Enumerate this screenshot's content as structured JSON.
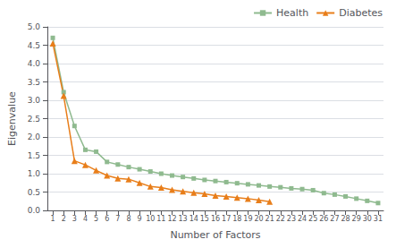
{
  "chart_data": {
    "type": "line",
    "xlabel": "Number of Factors",
    "ylabel": "Eigenvalue",
    "series": [
      {
        "name": "Health",
        "color": "#8fba8f",
        "marker": "square",
        "x": [
          1,
          2,
          3,
          4,
          5,
          6,
          7,
          8,
          9,
          10,
          11,
          12,
          13,
          14,
          15,
          16,
          17,
          18,
          19,
          20,
          21,
          22,
          23,
          24,
          25,
          26,
          27,
          28,
          29,
          30,
          31
        ],
        "values": [
          4.7,
          3.22,
          2.3,
          1.65,
          1.6,
          1.32,
          1.25,
          1.18,
          1.12,
          1.06,
          1.0,
          0.95,
          0.91,
          0.87,
          0.83,
          0.8,
          0.77,
          0.74,
          0.71,
          0.68,
          0.65,
          0.63,
          0.6,
          0.58,
          0.55,
          0.47,
          0.43,
          0.38,
          0.32,
          0.26,
          0.2
        ]
      },
      {
        "name": "Diabetes",
        "color": "#e87e1a",
        "marker": "triangle",
        "x": [
          1,
          2,
          3,
          4,
          5,
          6,
          7,
          8,
          9,
          10,
          11,
          12,
          13,
          14,
          15,
          16,
          17,
          18,
          19,
          20,
          21
        ],
        "values": [
          4.55,
          3.12,
          1.35,
          1.24,
          1.09,
          0.95,
          0.87,
          0.85,
          0.75,
          0.65,
          0.62,
          0.56,
          0.52,
          0.48,
          0.45,
          0.4,
          0.38,
          0.35,
          0.32,
          0.28,
          0.24
        ]
      }
    ],
    "xlim": [
      0.5,
      31.5
    ],
    "xticks": [
      1,
      2,
      3,
      4,
      5,
      6,
      7,
      8,
      9,
      10,
      11,
      12,
      13,
      14,
      15,
      16,
      17,
      18,
      19,
      20,
      21,
      22,
      23,
      24,
      25,
      26,
      27,
      28,
      29,
      30,
      31
    ],
    "ylim": [
      0,
      5.0
    ],
    "yticks": [
      {
        "value": 0,
        "label": "0.0"
      },
      0.5,
      {
        "value": 1.0,
        "label": "1.0"
      },
      1.5,
      {
        "value": 2.0,
        "label": "2.0"
      },
      2.5,
      {
        "value": 3.0,
        "label": "3.0"
      },
      3.5,
      {
        "value": 4.0,
        "label": "4.0"
      },
      4.5,
      {
        "value": 5.0,
        "label": "5.0"
      }
    ],
    "grid": true,
    "legend": "upper right"
  }
}
